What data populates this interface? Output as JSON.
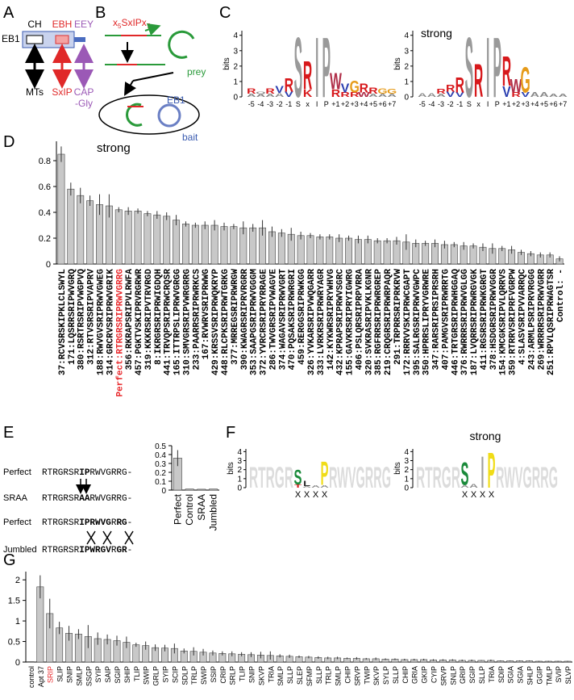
{
  "panel_labels": [
    "A",
    "B",
    "C",
    "D",
    "E",
    "F",
    "G"
  ],
  "diagram_a": {
    "protein": "EB1",
    "domains": [
      "CH",
      "EBH",
      "EEY"
    ],
    "partners": [
      "MTs",
      "SxIP",
      "CAP",
      "-Gly"
    ]
  },
  "diagram_b": {
    "peptide": [
      "x",
      "5",
      "SxIPx",
      "7"
    ],
    "prey": "prey",
    "bait_protein": "EB1",
    "bait": "bait"
  },
  "logos_c": {
    "y_label": "bits",
    "ylim": [
      0,
      4.3
    ],
    "yticks": [
      0,
      1,
      2,
      3,
      4
    ],
    "positions": [
      "-5",
      "-4",
      "-3",
      "-2",
      "-1",
      "S",
      "x",
      "I",
      "P",
      "+1",
      "+2",
      "+3",
      "+4",
      "+5",
      "+6",
      "+7"
    ],
    "letter_colors": {
      "R": "#d7191c",
      "K": "#d7191c",
      "V": "#2b3fb0",
      "W": "#b0304a",
      "G": "#e69b1a",
      "S": "#9a9a9a",
      "I": "#9a9a9a",
      "P": "#9a9a9a",
      "Q": "#888888",
      "A": "#888888"
    },
    "logos": [
      {
        "stacks": [
          [
            {
              "l": "A",
              "bits": 0.2
            },
            {
              "l": "R",
              "bits": 0.35
            }
          ],
          [
            {
              "l": "A",
              "bits": 0.2
            },
            {
              "l": "Q",
              "bits": 0.15
            }
          ],
          [
            {
              "l": "A",
              "bits": 0.2
            },
            {
              "l": "R",
              "bits": 0.35
            }
          ],
          [
            {
              "l": "A",
              "bits": 0.25
            },
            {
              "l": "V",
              "bits": 0.45
            }
          ],
          [
            {
              "l": "V",
              "bits": 0.35
            },
            {
              "l": "R",
              "bits": 0.9
            }
          ],
          [
            {
              "l": "S",
              "bits": 4.0
            }
          ],
          [
            {
              "l": "K",
              "bits": 0.5
            },
            {
              "l": "R",
              "bits": 1.9
            }
          ],
          [
            {
              "l": "I",
              "bits": 4.0
            }
          ],
          [
            {
              "l": "P",
              "bits": 4.0
            }
          ],
          [
            {
              "l": "R",
              "bits": 0.5
            },
            {
              "l": "W",
              "bits": 1.1
            }
          ],
          [
            {
              "l": "R",
              "bits": 0.3
            },
            {
              "l": "V",
              "bits": 0.6
            }
          ],
          [
            {
              "l": "R",
              "bits": 0.3
            },
            {
              "l": "G",
              "bits": 0.8
            }
          ],
          [
            {
              "l": "W",
              "bits": 0.3
            },
            {
              "l": "R",
              "bits": 0.6
            }
          ],
          [
            {
              "l": "A",
              "bits": 0.2
            },
            {
              "l": "R",
              "bits": 0.4
            }
          ],
          [
            {
              "l": "A",
              "bits": 0.2
            },
            {
              "l": "G",
              "bits": 0.35
            }
          ],
          [
            {
              "l": "A",
              "bits": 0.2
            },
            {
              "l": "G",
              "bits": 0.3
            }
          ]
        ]
      },
      {
        "title": "strong",
        "stacks": [
          [
            {
              "l": "A",
              "bits": 0.25
            }
          ],
          [
            {
              "l": "A",
              "bits": 0.25
            }
          ],
          [
            {
              "l": "A",
              "bits": 0.2
            },
            {
              "l": "R",
              "bits": 0.3
            }
          ],
          [
            {
              "l": "V",
              "bits": 0.35
            },
            {
              "l": "R",
              "bits": 0.45
            }
          ],
          [
            {
              "l": "V",
              "bits": 0.3
            },
            {
              "l": "R",
              "bits": 1.0
            }
          ],
          [
            {
              "l": "S",
              "bits": 4.0
            }
          ],
          [
            {
              "l": "R",
              "bits": 2.2
            }
          ],
          [
            {
              "l": "I",
              "bits": 4.0
            }
          ],
          [
            {
              "l": "P",
              "bits": 4.0
            }
          ],
          [
            {
              "l": "V",
              "bits": 0.7
            },
            {
              "l": "R",
              "bits": 2.0
            }
          ],
          [
            {
              "l": "R",
              "bits": 0.3
            },
            {
              "l": "W",
              "bits": 0.9
            }
          ],
          [
            {
              "l": "V",
              "bits": 0.3
            },
            {
              "l": "G",
              "bits": 1.7
            }
          ],
          [
            {
              "l": "A",
              "bits": 0.3
            }
          ],
          [
            {
              "l": "A",
              "bits": 0.3
            }
          ],
          [
            {
              "l": "A",
              "bits": 0.2
            }
          ],
          [
            {
              "l": "A",
              "bits": 0.2
            }
          ]
        ]
      }
    ]
  },
  "sequences_e": [
    {
      "name": "Perfect",
      "parts": [
        {
          "t": "RTRGRSR"
        },
        {
          "t": "IP",
          "bold": true
        },
        {
          "t": "RWVGRRG-"
        }
      ]
    },
    {
      "name": "SRAA",
      "parts": [
        {
          "t": "RTRGRSR"
        },
        {
          "t": "AA",
          "bold": true
        },
        {
          "t": "RWVGRRG-"
        }
      ]
    },
    {
      "name": "Perfect",
      "parts": [
        {
          "t": "RTRGRSR"
        },
        {
          "t": "IPRWVG",
          "bold": true
        },
        {
          "t": "R"
        },
        {
          "t": "RG",
          "bold": true
        },
        {
          "t": "-"
        }
      ]
    },
    {
      "name": "Jumbled",
      "parts": [
        {
          "t": "RTRGRSR"
        },
        {
          "t": "IPWRGV",
          "bold": true
        },
        {
          "t": "R"
        },
        {
          "t": "GR",
          "bold": true
        },
        {
          "t": "-"
        }
      ]
    }
  ],
  "logos_f": {
    "y_label": "bits",
    "ylim": [
      0,
      4.3
    ],
    "yticks": [
      0,
      1,
      2,
      3,
      4
    ],
    "background": [
      "RTRGR",
      "RWVGRRG"
    ],
    "background_bits": 2.4,
    "positions": [
      "X",
      "X",
      "X",
      "X"
    ],
    "letter_colors": {
      "S": "#1a8a3a",
      "P": "#f0dc18",
      "T": "#d7191c",
      "L": "#333333",
      "A": "#888888",
      "I": "#a0a0a0"
    },
    "logos": [
      {
        "stacks": [
          [
            {
              "l": "T",
              "bits": 0.35
            },
            {
              "l": "S",
              "bits": 1.7
            }
          ],
          [
            {
              "l": "A",
              "bits": 0.2
            },
            {
              "l": "L",
              "bits": 0.6
            }
          ],
          [
            {
              "l": "A",
              "bits": 0.3
            }
          ],
          [
            {
              "l": "A",
              "bits": 0.3
            },
            {
              "l": "P",
              "bits": 2.7
            }
          ]
        ]
      },
      {
        "title": "strong",
        "stacks": [
          [
            {
              "l": "A",
              "bits": 0.3
            },
            {
              "l": "S",
              "bits": 2.6
            }
          ],
          [
            {
              "l": "A",
              "bits": 0.4
            }
          ],
          [
            {
              "l": "I",
              "bits": 3.6
            }
          ],
          [
            {
              "l": "P",
              "bits": 4.0
            }
          ]
        ]
      }
    ]
  },
  "chart_data": [
    {
      "type": "bar",
      "title": "strong",
      "color": "#c8c8c8",
      "highlight": [
        6
      ],
      "highlight_color": "#e8282b",
      "categories": [
        "37:RCVSRSKIPKLCLSWYL",
        "171:LQSRRSRIPWVGRQ",
        "380:RSRTRSRIPVWGPVQ",
        "312:RTVSRSRIPVAPRV",
        "188:RWVGVSRIPRWVGWEG",
        "314:GRCRVSRIPRWVGRIK",
        "Perfect:RTRGRSRIPRWVGRRG",
        "356:RKRAPSRIPVLRWFA",
        "457:PGKTVSKIPRVRGRWR",
        "319:KKKRSRIPVTRVRGD",
        "8:IKRGRSRIPRWIGDQH",
        "441:TRVQPSRIPRWCRQSR",
        "165:ITTRPSLIPRWVGRGG",
        "310:SMVGRSRIPVWRGRRG",
        "233:PAARRSRIPRWRKCS",
        "167:RVWRVSRIPRWWG",
        "429:KRSSVSRIPRWQKRYP",
        "448:RLCPKSRIPRWTGRKG",
        "377:MRREGSRIPRWRGW",
        "390:KWAGRSRIPRVRGRR",
        "353:SAAPGSRIPRWVGGGM",
        "372:YVRCRSRIPRYRRAGE",
        "286:TWVGRSRIPVWAGVE",
        "374:WAGAVSRIPRWVGRT",
        "470:PQSAKSRIPRWRGRI",
        "459:RERGGSRIPRWKGG",
        "326:YVKARSRIPVWQGARR",
        "333:LVRKRSRIPRWRYAGR",
        "142:KYKWRSRIPRYWHVG",
        "432:KPRAPSRIPRWVSGRC",
        "155:GAVKRSRIPRYIGWRG",
        "406:PSLQRSRIPRPVRRA",
        "320:SVKRASRIPVKLKGNR",
        "385:RGFRRSRIPRWRGREP",
        "219:CRQGRSRIPRWRPAQR",
        "291:TRPRRSRIPRKRVW",
        "172:RRRVVSKIPRWCGAPT",
        "395:SALRGSRIPRWVGWPC",
        "350:HPRRSLIPRYVGRWRE",
        "347:RARSRIPRSIPRSRH",
        "407:PAMGVSRIPRWRRTG",
        "446:TRTGRSRIPRWHGGAQ",
        "376:RWRRRSRIPRWVGLGG",
        "187:LVQRRSRIPRWRGVGK",
        "411:RGSRSRIPRWKGRGT",
        "378:HSDGRSRIPRWVGGR",
        "154:KMCGKSRIPVLQRRVS",
        "359:RTRRVSRIPRFVGRPW",
        "4:SLASVSRIPVVARRQC",
        "243:ARMLPSRIPRVRGGG",
        "269:WRRRRSRIPRWVGRR",
        "251:RPVLQSRIPRWAGTSR",
        "Control: -"
      ],
      "values": [
        0.85,
        0.58,
        0.53,
        0.49,
        0.46,
        0.45,
        0.42,
        0.41,
        0.41,
        0.39,
        0.38,
        0.37,
        0.34,
        0.31,
        0.3,
        0.3,
        0.3,
        0.29,
        0.29,
        0.28,
        0.28,
        0.28,
        0.25,
        0.24,
        0.23,
        0.22,
        0.22,
        0.21,
        0.21,
        0.2,
        0.2,
        0.19,
        0.19,
        0.18,
        0.18,
        0.18,
        0.17,
        0.16,
        0.16,
        0.16,
        0.15,
        0.15,
        0.14,
        0.14,
        0.13,
        0.12,
        0.12,
        0.11,
        0.09,
        0.08,
        0.07,
        0.07,
        0.04
      ],
      "errors": [
        0.06,
        0.05,
        0.06,
        0.04,
        0.08,
        0.09,
        0.02,
        0.03,
        0.02,
        0.02,
        0.03,
        0.03,
        0.04,
        0.02,
        0.02,
        0.03,
        0.04,
        0.03,
        0.02,
        0.05,
        0.03,
        0.06,
        0.04,
        0.03,
        0.05,
        0.03,
        0.02,
        0.02,
        0.02,
        0.03,
        0.02,
        0.03,
        0.03,
        0.02,
        0.02,
        0.03,
        0.06,
        0.03,
        0.02,
        0.03,
        0.03,
        0.02,
        0.03,
        0.02,
        0.03,
        0.04,
        0.02,
        0.03,
        0.02,
        0.02,
        0.02,
        0.02,
        0.02
      ],
      "ylim": [
        0,
        0.95
      ],
      "yticks": [
        0,
        0.2,
        0.4,
        0.6,
        0.8
      ]
    },
    {
      "type": "bar",
      "color": "#c8c8c8",
      "categories": [
        "Perfect",
        "Control",
        "SRAA",
        "Jumbled"
      ],
      "values": [
        0.36,
        0.012,
        0.01,
        0.012
      ],
      "errors": [
        0.09,
        null,
        null,
        null
      ],
      "ylim": [
        0,
        0.5
      ],
      "yticks": [
        0,
        0.1,
        0.2,
        0.3,
        0.4,
        0.5
      ]
    },
    {
      "type": "bar",
      "color": "#c8c8c8",
      "highlight": [
        2
      ],
      "highlight_color": "#e8282b",
      "categories": [
        "control",
        "Apt 37",
        "SRIP",
        "SLIP",
        "SNIP",
        "SMLP",
        "SSGP",
        "SYIP",
        "SAIP",
        "SGIP",
        "SHIP",
        "TLIP",
        "SWIP",
        "GRLP",
        "SYIP",
        "SCIP",
        "SDLP",
        "TRLP",
        "SWIP",
        "SSIP",
        "CRIP",
        "SRLP",
        "TLIP",
        "SNIP",
        "SKVP",
        "TRIA",
        "SMLP",
        "SLLP",
        "SLEP",
        "SFMP",
        "SLLP",
        "TRLP",
        "SMLP",
        "CHIP",
        "SRVP",
        "TWIP",
        "SKVP",
        "SYLP",
        "SLLP",
        "CHIP",
        "GRIA",
        "GKIP",
        "CYIP",
        "SRVP",
        "SNLP",
        "GRIP",
        "SGIP",
        "SLLP",
        "TRIA",
        "SDIP",
        "SGIA",
        "SGIA",
        "SHLP",
        "GGIP",
        "TMLP",
        "SVIP",
        "SLVP"
      ],
      "values": [
        0.01,
        1.83,
        1.18,
        0.83,
        0.7,
        0.68,
        0.62,
        0.57,
        0.55,
        0.52,
        0.48,
        0.42,
        0.4,
        0.35,
        0.34,
        0.33,
        0.27,
        0.26,
        0.24,
        0.22,
        0.21,
        0.2,
        0.19,
        0.18,
        0.17,
        0.16,
        0.15,
        0.14,
        0.13,
        0.12,
        0.11,
        0.1,
        0.1,
        0.09,
        0.09,
        0.08,
        0.08,
        0.07,
        0.07,
        0.06,
        0.06,
        0.06,
        0.05,
        0.05,
        0.05,
        0.04,
        0.04,
        0.04,
        0.04,
        0.03,
        0.03,
        0.03,
        0.03,
        0.02,
        0.02,
        0.02,
        0.02
      ],
      "errors": [
        null,
        0.28,
        0.36,
        0.15,
        0.18,
        0.12,
        0.28,
        0.15,
        0.12,
        0.12,
        0.14,
        0.05,
        0.1,
        0.08,
        0.08,
        0.12,
        0.06,
        0.1,
        0.08,
        0.06,
        0.05,
        0.06,
        0.05,
        0.06,
        0.08,
        0.1,
        0.04,
        0.04,
        0.03,
        0.03,
        0.03,
        0.03,
        0.03,
        0.02,
        0.03,
        0.02,
        0.03,
        0.02,
        0.02,
        0.02,
        0.02,
        0.02,
        0.02,
        0.02,
        0.02,
        0.02,
        0.02,
        0.01,
        0.02,
        0.01,
        0.01,
        0.01,
        0.01,
        0.01,
        0.01,
        0.01,
        0.01
      ],
      "ylim": [
        0,
        2.2
      ],
      "yticks": [
        0,
        0.5,
        1,
        1.5,
        2
      ]
    }
  ]
}
